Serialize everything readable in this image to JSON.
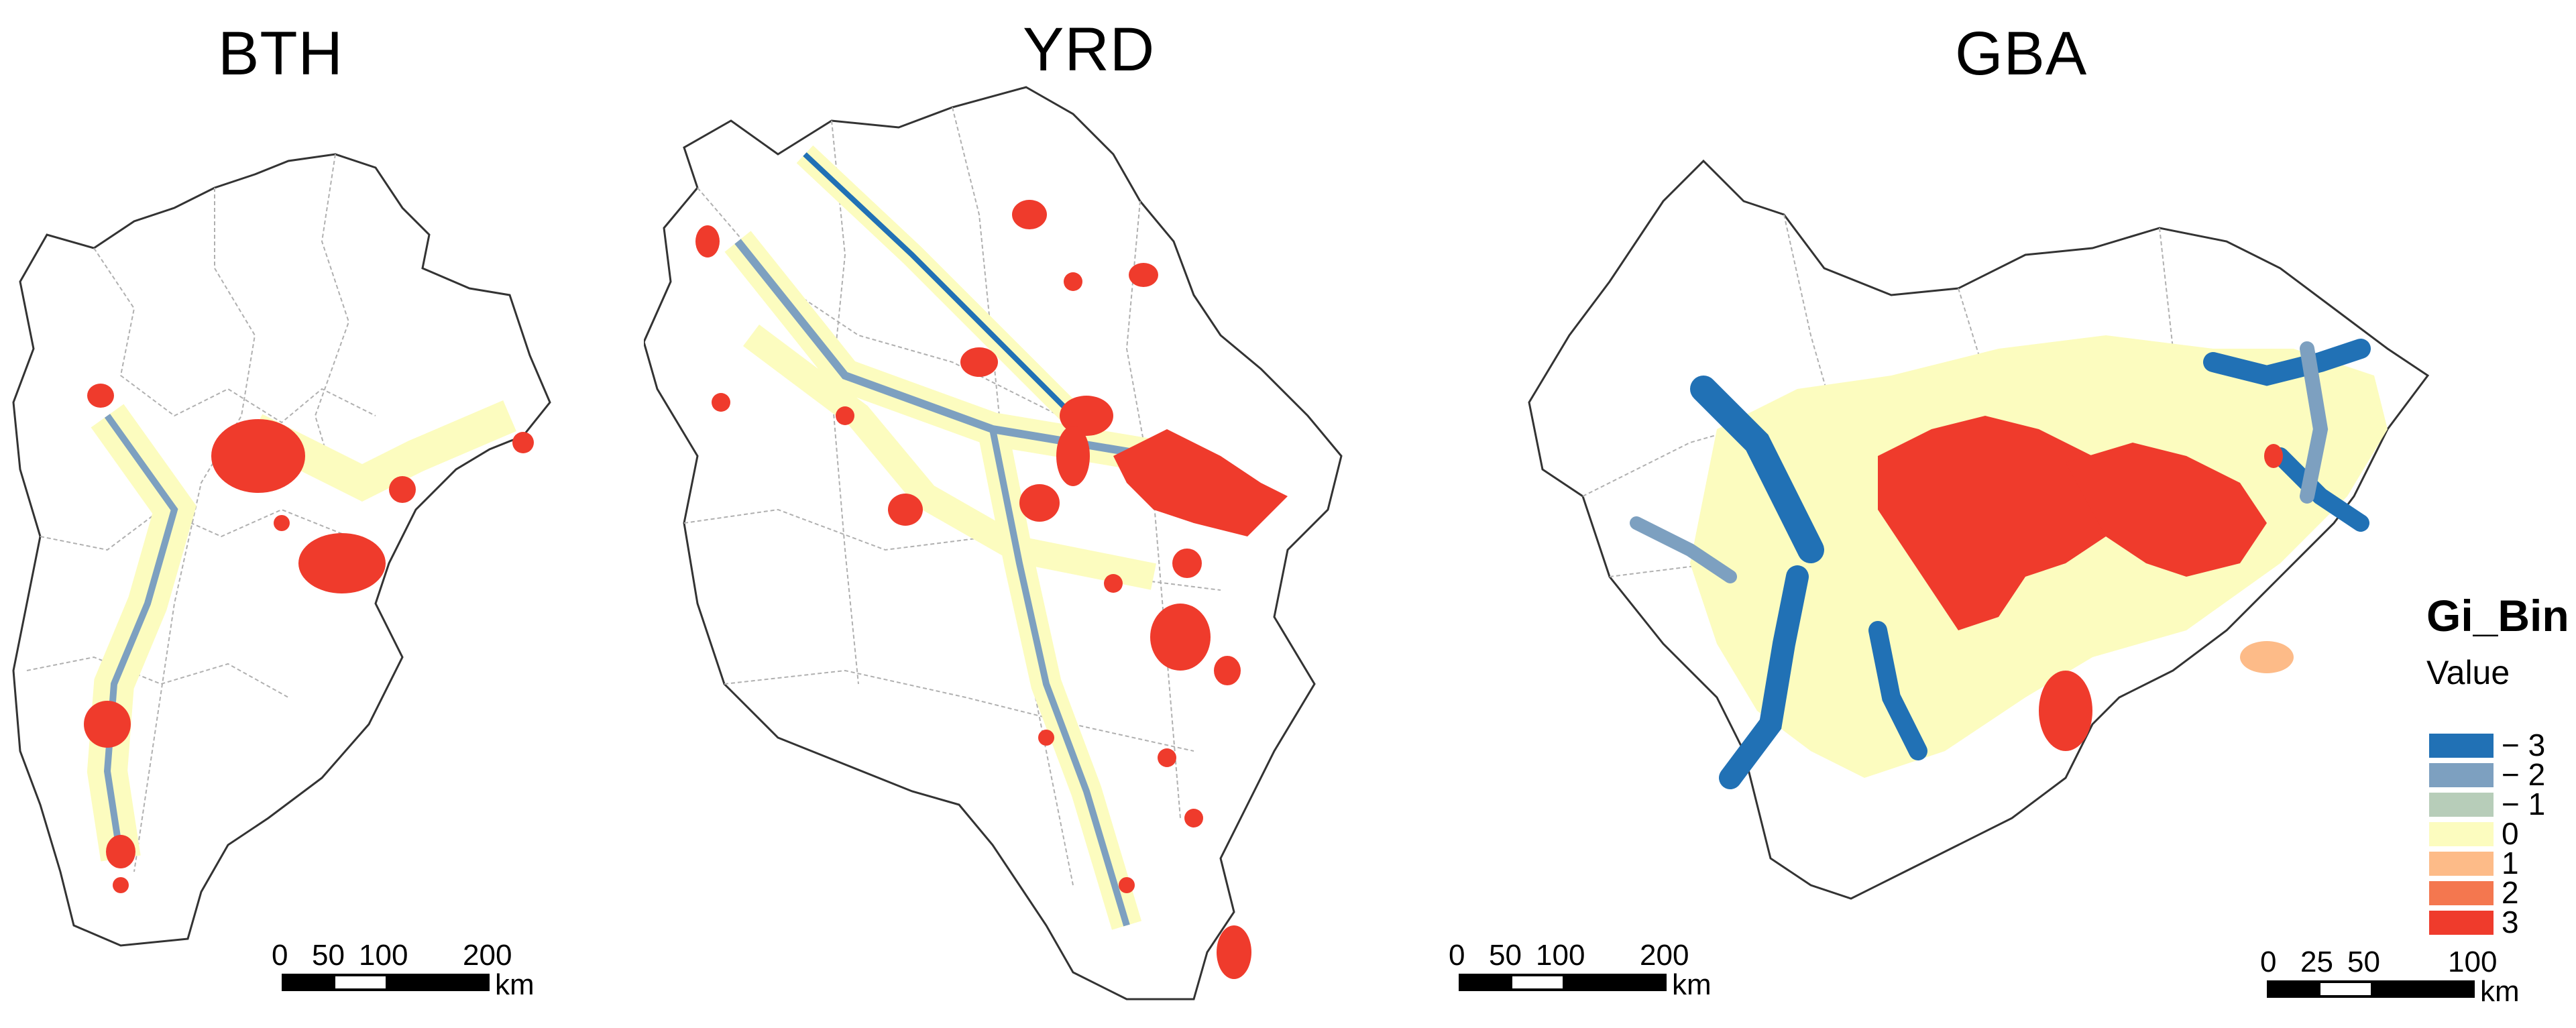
{
  "panels": [
    {
      "title": "BTH",
      "scale_ticks": [
        "0",
        "50",
        "100",
        "200"
      ],
      "scale_unit": "km"
    },
    {
      "title": "YRD",
      "scale_ticks": [
        "0",
        "50",
        "100",
        "200"
      ],
      "scale_unit": "km"
    },
    {
      "title": "GBA",
      "scale_ticks": [
        "0",
        "25",
        "50",
        "100"
      ],
      "scale_unit": "km"
    }
  ],
  "legend": {
    "title": "Gi_Bin",
    "subtitle": "Value",
    "items": [
      {
        "label": "− 3",
        "color": "#2171b5"
      },
      {
        "label": "− 2",
        "color": "#7da0c0"
      },
      {
        "label": "− 1",
        "color": "#b7cdb9"
      },
      {
        "label": "0",
        "color": "#fcfcbf"
      },
      {
        "label": "1",
        "color": "#fdbb88"
      },
      {
        "label": "2",
        "color": "#f4774f"
      },
      {
        "label": "3",
        "color": "#ef3b2c"
      }
    ]
  },
  "colors": {
    "boundary": "#333333",
    "inner_boundary": "#9a9a9a",
    "hot": "#ef3b2c",
    "cold": "#2171b5",
    "neutral": "#fcfcbf",
    "cold_light": "#7da0c0"
  }
}
